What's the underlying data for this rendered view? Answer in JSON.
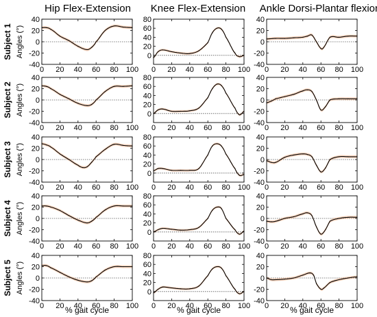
{
  "column_titles": [
    "Hip Flex-Extension",
    "Knee Flex-Extension",
    "Ankle Dorsi-Plantar flexion"
  ],
  "row_labels": [
    "Subject 1",
    "Subject 2",
    "Subject 3",
    "Subject 4",
    "Subject 5"
  ],
  "ylabel": "Angles (°)",
  "xlabel": "% gait cycle",
  "colors": {
    "mean_line": "#000000",
    "band": "#f2b48c",
    "zero_line": "#555555",
    "axes": "#000000"
  },
  "chart_data": [
    {
      "type": "line",
      "row": "Subject 1",
      "column": "Hip Flex-Extension",
      "xlim": [
        0,
        100
      ],
      "ylim": [
        -40,
        40
      ],
      "xticks": [
        0,
        20,
        40,
        60,
        80,
        100
      ],
      "yticks": [
        -40,
        -20,
        0,
        20,
        40
      ],
      "zero_line": true,
      "grid": false,
      "series": [
        {
          "x": [
            0,
            5,
            10,
            20,
            30,
            40,
            50,
            55,
            60,
            70,
            80,
            90,
            100
          ],
          "values": [
            25,
            25,
            22,
            10,
            2,
            -8,
            -14,
            -10,
            0,
            20,
            28,
            26,
            25
          ]
        }
      ]
    },
    {
      "type": "line",
      "row": "Subject 1",
      "column": "Knee Flex-Extension",
      "xlim": [
        0,
        100
      ],
      "ylim": [
        -20,
        80
      ],
      "xticks": [
        0,
        20,
        40,
        60,
        80,
        100
      ],
      "yticks": [
        0,
        20,
        40,
        60,
        80
      ],
      "zero_line": true,
      "grid": false,
      "series": [
        {
          "x": [
            0,
            5,
            10,
            20,
            30,
            40,
            50,
            60,
            65,
            70,
            75,
            80,
            90,
            95,
            100
          ],
          "values": [
            -5,
            8,
            12,
            8,
            5,
            4,
            10,
            28,
            50,
            60,
            58,
            40,
            5,
            -3,
            0
          ]
        }
      ]
    },
    {
      "type": "line",
      "row": "Subject 1",
      "column": "Ankle Dorsi-Plantar flexion",
      "xlim": [
        0,
        100
      ],
      "ylim": [
        -40,
        40
      ],
      "xticks": [
        0,
        20,
        40,
        60,
        80,
        100
      ],
      "yticks": [
        -40,
        -20,
        0,
        20,
        40
      ],
      "zero_line": true,
      "grid": false,
      "series": [
        {
          "x": [
            0,
            10,
            20,
            30,
            40,
            45,
            50,
            55,
            60,
            63,
            70,
            80,
            90,
            100
          ],
          "values": [
            5,
            6,
            6,
            7,
            8,
            10,
            12,
            0,
            -12,
            -10,
            8,
            8,
            10,
            10
          ]
        }
      ]
    },
    {
      "type": "line",
      "row": "Subject 2",
      "column": "Hip Flex-Extension",
      "xlim": [
        0,
        100
      ],
      "ylim": [
        -40,
        40
      ],
      "xticks": [
        0,
        20,
        40,
        60,
        80,
        100
      ],
      "yticks": [
        -40,
        -20,
        0,
        20,
        40
      ],
      "zero_line": true,
      "grid": false,
      "series": [
        {
          "x": [
            0,
            5,
            10,
            20,
            30,
            40,
            50,
            55,
            60,
            70,
            80,
            90,
            100
          ],
          "values": [
            25,
            24,
            20,
            10,
            2,
            -6,
            -10,
            -8,
            0,
            15,
            24,
            24,
            25
          ]
        }
      ]
    },
    {
      "type": "line",
      "row": "Subject 2",
      "column": "Knee Flex-Extension",
      "xlim": [
        0,
        100
      ],
      "ylim": [
        -20,
        80
      ],
      "xticks": [
        0,
        20,
        40,
        60,
        80,
        100
      ],
      "yticks": [
        0,
        20,
        40,
        60,
        80
      ],
      "zero_line": true,
      "grid": false,
      "series": [
        {
          "x": [
            0,
            5,
            10,
            20,
            30,
            40,
            50,
            60,
            65,
            70,
            75,
            80,
            90,
            95,
            100
          ],
          "values": [
            0,
            8,
            10,
            5,
            5,
            6,
            12,
            35,
            55,
            65,
            62,
            45,
            12,
            -3,
            5
          ]
        }
      ]
    },
    {
      "type": "line",
      "row": "Subject 2",
      "column": "Ankle Dorsi-Plantar flexion",
      "xlim": [
        0,
        100
      ],
      "ylim": [
        -40,
        40
      ],
      "xticks": [
        0,
        20,
        40,
        60,
        80,
        100
      ],
      "yticks": [
        -40,
        -20,
        0,
        20,
        40
      ],
      "zero_line": true,
      "grid": false,
      "series": [
        {
          "x": [
            0,
            5,
            10,
            20,
            30,
            40,
            45,
            50,
            55,
            60,
            65,
            70,
            80,
            90,
            100
          ],
          "values": [
            -5,
            -2,
            2,
            6,
            10,
            16,
            18,
            15,
            0,
            -18,
            -12,
            0,
            2,
            2,
            2
          ]
        }
      ]
    },
    {
      "type": "line",
      "row": "Subject 3",
      "column": "Hip Flex-Extension",
      "xlim": [
        0,
        100
      ],
      "ylim": [
        -40,
        40
      ],
      "xticks": [
        0,
        20,
        40,
        60,
        80,
        100
      ],
      "yticks": [
        -40,
        -20,
        0,
        20,
        40
      ],
      "zero_line": true,
      "grid": false,
      "series": [
        {
          "x": [
            0,
            5,
            10,
            20,
            30,
            40,
            45,
            50,
            55,
            60,
            70,
            80,
            90,
            100
          ],
          "values": [
            28,
            26,
            22,
            10,
            0,
            -10,
            -14,
            -13,
            -5,
            5,
            18,
            27,
            25,
            24
          ]
        }
      ]
    },
    {
      "type": "line",
      "row": "Subject 3",
      "column": "Knee Flex-Extension",
      "xlim": [
        0,
        100
      ],
      "ylim": [
        -20,
        80
      ],
      "xticks": [
        0,
        20,
        40,
        60,
        80,
        100
      ],
      "yticks": [
        0,
        20,
        40,
        60,
        80
      ],
      "zero_line": true,
      "grid": false,
      "series": [
        {
          "x": [
            0,
            5,
            10,
            20,
            30,
            40,
            50,
            60,
            65,
            70,
            75,
            80,
            90,
            95,
            100
          ],
          "values": [
            5,
            10,
            10,
            6,
            6,
            6,
            10,
            40,
            60,
            65,
            60,
            42,
            10,
            -5,
            -3
          ]
        }
      ]
    },
    {
      "type": "line",
      "row": "Subject 3",
      "column": "Ankle Dorsi-Plantar flexion",
      "xlim": [
        0,
        100
      ],
      "ylim": [
        -40,
        40
      ],
      "xticks": [
        0,
        20,
        40,
        60,
        80,
        100
      ],
      "yticks": [
        -40,
        -20,
        0,
        20,
        40
      ],
      "zero_line": true,
      "grid": false,
      "series": [
        {
          "x": [
            0,
            5,
            10,
            20,
            30,
            40,
            45,
            50,
            55,
            60,
            65,
            70,
            80,
            90,
            100
          ],
          "values": [
            -2,
            -5,
            -5,
            4,
            8,
            10,
            9,
            5,
            -10,
            -22,
            -15,
            0,
            5,
            5,
            5
          ]
        }
      ]
    },
    {
      "type": "line",
      "row": "Subject 4",
      "column": "Hip Flex-Extension",
      "xlim": [
        0,
        100
      ],
      "ylim": [
        -40,
        40
      ],
      "xticks": [
        0,
        20,
        40,
        60,
        80,
        100
      ],
      "yticks": [
        -40,
        -20,
        0,
        20,
        40
      ],
      "zero_line": true,
      "grid": false,
      "series": [
        {
          "x": [
            0,
            5,
            10,
            20,
            30,
            40,
            50,
            55,
            60,
            70,
            80,
            90,
            100
          ],
          "values": [
            22,
            22,
            20,
            14,
            5,
            -3,
            -8,
            -5,
            2,
            15,
            22,
            22,
            22
          ]
        }
      ]
    },
    {
      "type": "line",
      "row": "Subject 4",
      "column": "Knee Flex-Extension",
      "xlim": [
        0,
        100
      ],
      "ylim": [
        -20,
        80
      ],
      "xticks": [
        0,
        20,
        40,
        60,
        80,
        100
      ],
      "yticks": [
        0,
        20,
        40,
        60,
        80
      ],
      "zero_line": true,
      "grid": false,
      "series": [
        {
          "x": [
            0,
            5,
            10,
            20,
            30,
            40,
            50,
            60,
            65,
            70,
            75,
            80,
            90,
            95,
            100
          ],
          "values": [
            0,
            5,
            8,
            6,
            4,
            5,
            10,
            30,
            48,
            55,
            52,
            30,
            5,
            -5,
            2
          ]
        }
      ]
    },
    {
      "type": "line",
      "row": "Subject 4",
      "column": "Ankle Dorsi-Plantar flexion",
      "xlim": [
        0,
        100
      ],
      "ylim": [
        -40,
        40
      ],
      "xticks": [
        0,
        20,
        40,
        60,
        80,
        100
      ],
      "yticks": [
        -40,
        -20,
        0,
        20,
        40
      ],
      "zero_line": true,
      "grid": false,
      "series": [
        {
          "x": [
            0,
            5,
            10,
            20,
            30,
            40,
            45,
            50,
            55,
            60,
            65,
            70,
            80,
            90,
            100
          ],
          "values": [
            -5,
            -6,
            -5,
            0,
            3,
            8,
            10,
            5,
            -15,
            -28,
            -20,
            -5,
            0,
            2,
            2
          ]
        }
      ]
    },
    {
      "type": "line",
      "row": "Subject 5",
      "column": "Hip Flex-Extension",
      "xlim": [
        0,
        100
      ],
      "ylim": [
        -40,
        40
      ],
      "xticks": [
        0,
        20,
        40,
        60,
        80,
        100
      ],
      "yticks": [
        -40,
        -20,
        0,
        20,
        40
      ],
      "zero_line": true,
      "grid": false,
      "series": [
        {
          "x": [
            0,
            5,
            10,
            20,
            30,
            40,
            50,
            55,
            60,
            70,
            80,
            90,
            100
          ],
          "values": [
            22,
            22,
            18,
            10,
            2,
            -4,
            -7,
            -5,
            2,
            14,
            20,
            20,
            20
          ]
        }
      ]
    },
    {
      "type": "line",
      "row": "Subject 5",
      "column": "Knee Flex-Extension",
      "xlim": [
        0,
        100
      ],
      "ylim": [
        -20,
        80
      ],
      "xticks": [
        0,
        20,
        40,
        60,
        80,
        100
      ],
      "yticks": [
        0,
        20,
        40,
        60,
        80
      ],
      "zero_line": true,
      "grid": false,
      "series": [
        {
          "x": [
            0,
            5,
            10,
            20,
            30,
            40,
            50,
            60,
            65,
            70,
            75,
            80,
            90,
            95,
            100
          ],
          "values": [
            -3,
            5,
            10,
            8,
            6,
            6,
            12,
            35,
            50,
            55,
            52,
            35,
            5,
            -5,
            0
          ]
        }
      ]
    },
    {
      "type": "line",
      "row": "Subject 5",
      "column": "Ankle Dorsi-Plantar flexion",
      "xlim": [
        0,
        100
      ],
      "ylim": [
        -40,
        40
      ],
      "xticks": [
        0,
        20,
        40,
        60,
        80,
        100
      ],
      "yticks": [
        -40,
        -20,
        0,
        20,
        40
      ],
      "zero_line": true,
      "grid": false,
      "series": [
        {
          "x": [
            0,
            5,
            10,
            20,
            30,
            40,
            48,
            52,
            55,
            60,
            63,
            70,
            80,
            90,
            100
          ],
          "values": [
            0,
            -3,
            -3,
            -2,
            0,
            5,
            9,
            5,
            -10,
            -20,
            -18,
            -8,
            -3,
            0,
            2
          ]
        }
      ]
    }
  ]
}
